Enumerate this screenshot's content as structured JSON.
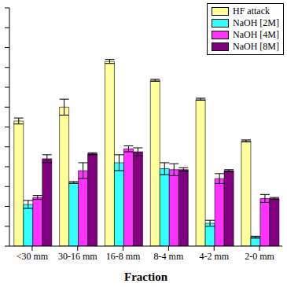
{
  "chart_data": {
    "type": "bar",
    "x_label": "Fraction",
    "categories": [
      "<30 mm",
      "30-16 mm",
      "16-8 mm",
      "8-4 mm",
      "4-2 mm",
      "2-0 mm"
    ],
    "series": [
      {
        "name": "HF attack",
        "color": "#ffff99",
        "values": [
          6.3,
          7.0,
          9.3,
          8.35,
          7.4,
          5.3
        ],
        "errors": [
          0.15,
          0.4,
          0.1,
          0.05,
          0.05,
          0.05
        ]
      },
      {
        "name": "NaOH [2M]",
        "color": "#33ffff",
        "values": [
          2.1,
          3.2,
          4.2,
          3.9,
          1.15,
          0.45
        ],
        "errors": [
          0.2,
          0.05,
          0.4,
          0.3,
          0.15,
          0.05
        ]
      },
      {
        "name": "NaOH [4M]",
        "color": "#ff33ff",
        "values": [
          2.45,
          3.8,
          4.9,
          3.85,
          3.4,
          2.4
        ],
        "errors": [
          0.1,
          0.4,
          0.15,
          0.3,
          0.25,
          0.2
        ]
      },
      {
        "name": "NaOH [8M]",
        "color": "#800080",
        "values": [
          4.4,
          4.65,
          4.75,
          3.85,
          3.8,
          2.4
        ],
        "errors": [
          0.2,
          0.05,
          0.2,
          0.1,
          0.05,
          0.05
        ]
      }
    ],
    "ylim": [
      0,
      12
    ],
    "yticks": [
      0,
      1,
      2,
      3,
      4,
      5,
      6,
      7,
      8,
      9,
      10,
      11,
      12
    ],
    "tick_labels": "x",
    "legend": "upper right"
  }
}
